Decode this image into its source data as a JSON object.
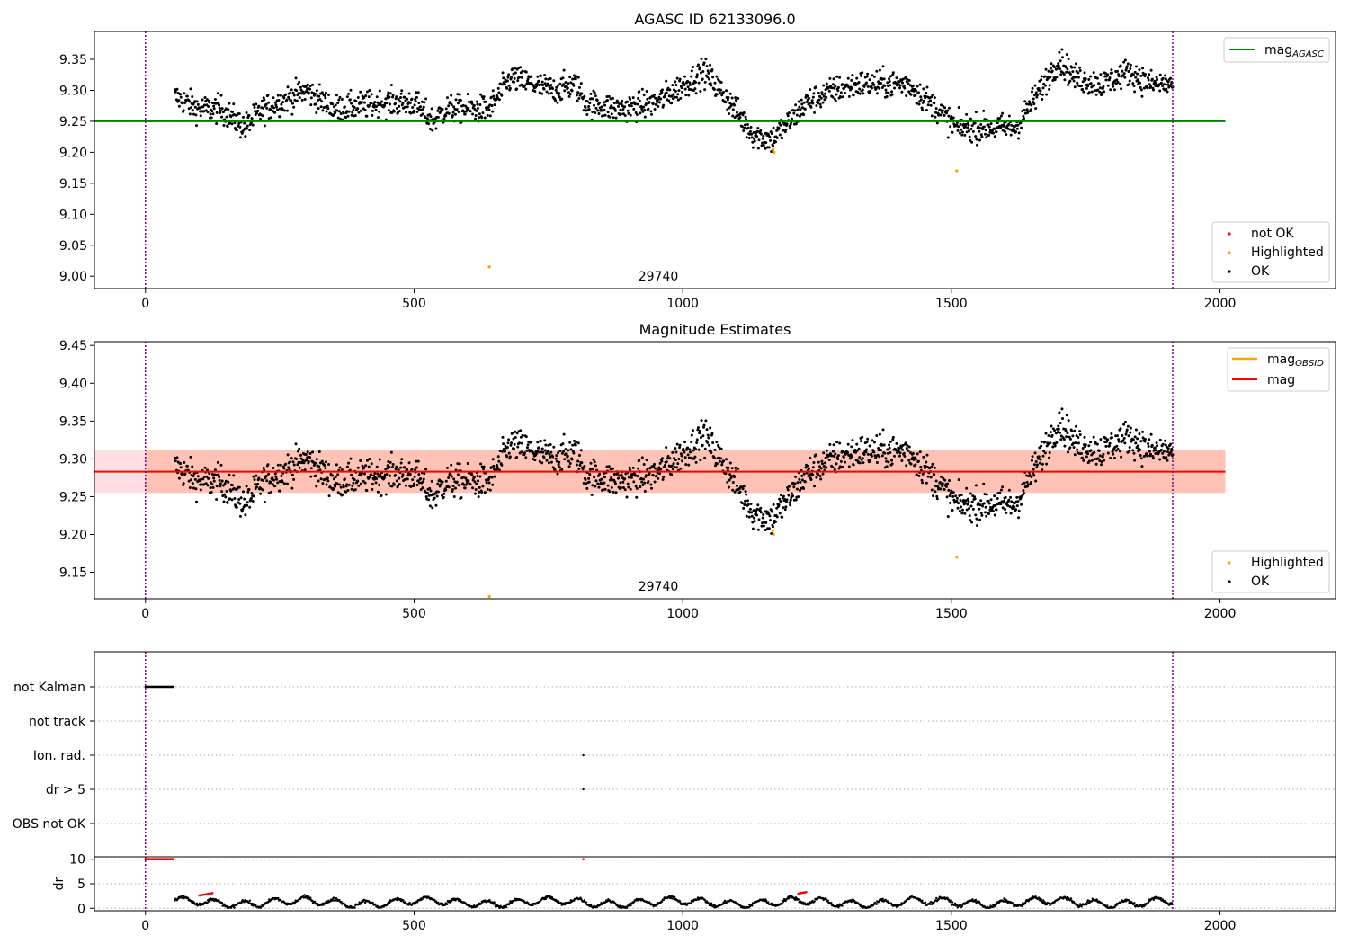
{
  "chart_data": [
    {
      "type": "scatter",
      "title": "AGASC ID 62133096.0",
      "xlim": [
        -95,
        2215
      ],
      "ylim": [
        8.98,
        9.395
      ],
      "xticks": [
        0,
        500,
        1000,
        1500,
        2000
      ],
      "yticks": [
        9.0,
        9.05,
        9.1,
        9.15,
        9.2,
        9.25,
        9.3,
        9.35
      ],
      "obs_boundaries": [
        0,
        1912
      ],
      "obsid_label": "29740",
      "obsid_label_x": 956,
      "mag_agasc": 9.25,
      "mag_agasc_x": [
        0,
        2010
      ],
      "legend_line": {
        "label": "mag",
        "sub": "AGASC",
        "color": "#008000"
      },
      "legend_points": [
        {
          "label": "not OK",
          "color": "#ff0000"
        },
        {
          "label": "Highlighted",
          "color": "#ffa500"
        },
        {
          "label": "OK",
          "color": "#000000"
        }
      ],
      "series": [
        {
          "name": "OK",
          "color": "#000000",
          "trend_x": [
            55,
            100,
            140,
            185,
            220,
            300,
            350,
            450,
            500,
            535,
            560,
            640,
            680,
            760,
            800,
            820,
            880,
            950,
            1040,
            1080,
            1130,
            1165,
            1200,
            1230,
            1280,
            1330,
            1420,
            1460,
            1510,
            1550,
            1620,
            1665,
            1700,
            1730,
            1780,
            1830,
            1870,
            1910
          ],
          "trend_y": [
            9.29,
            9.27,
            9.27,
            9.24,
            9.27,
            9.3,
            9.27,
            9.28,
            9.28,
            9.25,
            9.27,
            9.27,
            9.32,
            9.3,
            9.31,
            9.28,
            9.27,
            9.28,
            9.33,
            9.29,
            9.23,
            9.22,
            9.25,
            9.28,
            9.3,
            9.31,
            9.31,
            9.28,
            9.24,
            9.24,
            9.24,
            9.3,
            9.35,
            9.32,
            9.31,
            9.33,
            9.31,
            9.31
          ]
        },
        {
          "name": "Highlighted",
          "color": "#ffa500",
          "x": [
            640,
            1168,
            1169,
            1170,
            1510
          ],
          "y": [
            9.015,
            9.205,
            9.2,
            9.2,
            9.17
          ]
        }
      ]
    },
    {
      "type": "scatter",
      "title": "Magnitude Estimates",
      "xlim": [
        -95,
        2215
      ],
      "ylim": [
        9.115,
        9.455
      ],
      "xticks": [
        0,
        500,
        1000,
        1500,
        2000
      ],
      "yticks": [
        9.15,
        9.2,
        9.25,
        9.3,
        9.35,
        9.4,
        9.45
      ],
      "obs_boundaries": [
        0,
        1912
      ],
      "obsid_label": "29740",
      "obsid_label_x": 956,
      "mag": 9.283,
      "mag_band": [
        9.255,
        9.312
      ],
      "mag_obsid": 9.283,
      "mag_x": [
        -95,
        2010
      ],
      "legend_line": [
        {
          "label": "mag",
          "sub": "OBSID",
          "color": "#ffa500"
        },
        {
          "label": "mag",
          "color": "#ff0000"
        }
      ],
      "legend_points": [
        {
          "label": "Highlighted",
          "color": "#ffa500"
        },
        {
          "label": "OK",
          "color": "#000000"
        }
      ],
      "series": [
        {
          "name": "Highlighted",
          "color": "#ffa500",
          "x": [
            640,
            1168,
            1169,
            1510
          ],
          "y": [
            9.118,
            9.205,
            9.2,
            9.17
          ]
        }
      ]
    },
    {
      "type": "scatter",
      "xlim": [
        -95,
        2215
      ],
      "flag_categories": [
        "not Kalman",
        "not track",
        "Ion. rad.",
        "dr > 5",
        "OBS not OK"
      ],
      "flags": [
        {
          "category": "not Kalman",
          "x_range": [
            0,
            52
          ]
        },
        {
          "category": "Ion. rad.",
          "x": [
            815
          ]
        },
        {
          "category": "dr > 5",
          "x": [
            815
          ]
        }
      ],
      "obs_boundaries": [
        0,
        1912
      ]
    },
    {
      "type": "scatter",
      "ylabel": "dr",
      "xlim": [
        -95,
        2215
      ],
      "ylim": [
        -0.5,
        10.5
      ],
      "yticks": [
        0,
        5,
        10
      ],
      "xticks": [
        0,
        500,
        1000,
        1500,
        2000
      ],
      "obs_boundaries": [
        0,
        1912
      ],
      "dr_not_ok": {
        "x_range": [
          0,
          52
        ],
        "x_extra": [
          815
        ],
        "y": 10
      },
      "dr_red_segments": [
        [
          100,
          125,
          2.6
        ],
        [
          1215,
          1230,
          3.0
        ]
      ]
    }
  ]
}
